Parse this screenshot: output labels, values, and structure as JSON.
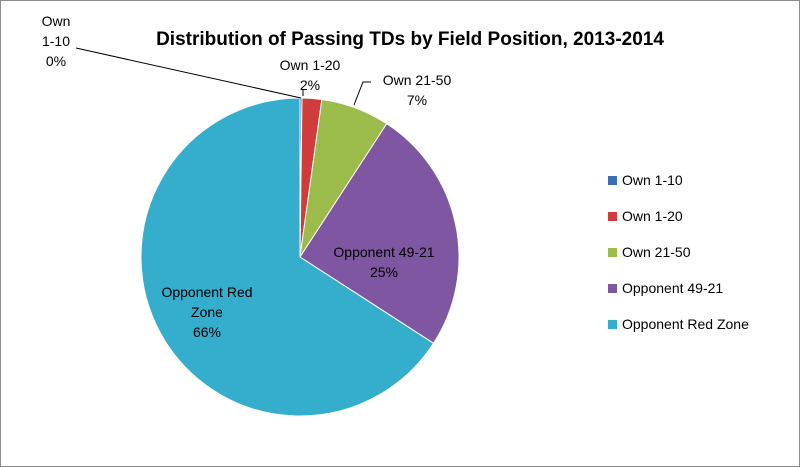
{
  "chart_data": {
    "type": "pie",
    "title": "Distribution of Passing TDs by Field Position, 2013-2014",
    "categories": [
      "Own 1-10",
      "Own 1-20",
      "Own 21-50",
      "Opponent 49-21",
      "Opponent Red Zone"
    ],
    "values": [
      0.2,
      2,
      7,
      25,
      66
    ],
    "labels": [
      {
        "name": "Own 1-10",
        "pct": "0%"
      },
      {
        "name": "Own 1-20",
        "pct": "2%"
      },
      {
        "name": "Own 21-50",
        "pct": "7%"
      },
      {
        "name": "Opponent 49-21",
        "pct": "25%"
      },
      {
        "name": "Opponent Red Zone",
        "pct": "66%"
      }
    ],
    "colors": [
      "#3a6fb5",
      "#d03c3b",
      "#9bbb4a",
      "#7f56a2",
      "#35aecd"
    ],
    "legend_position": "right"
  }
}
